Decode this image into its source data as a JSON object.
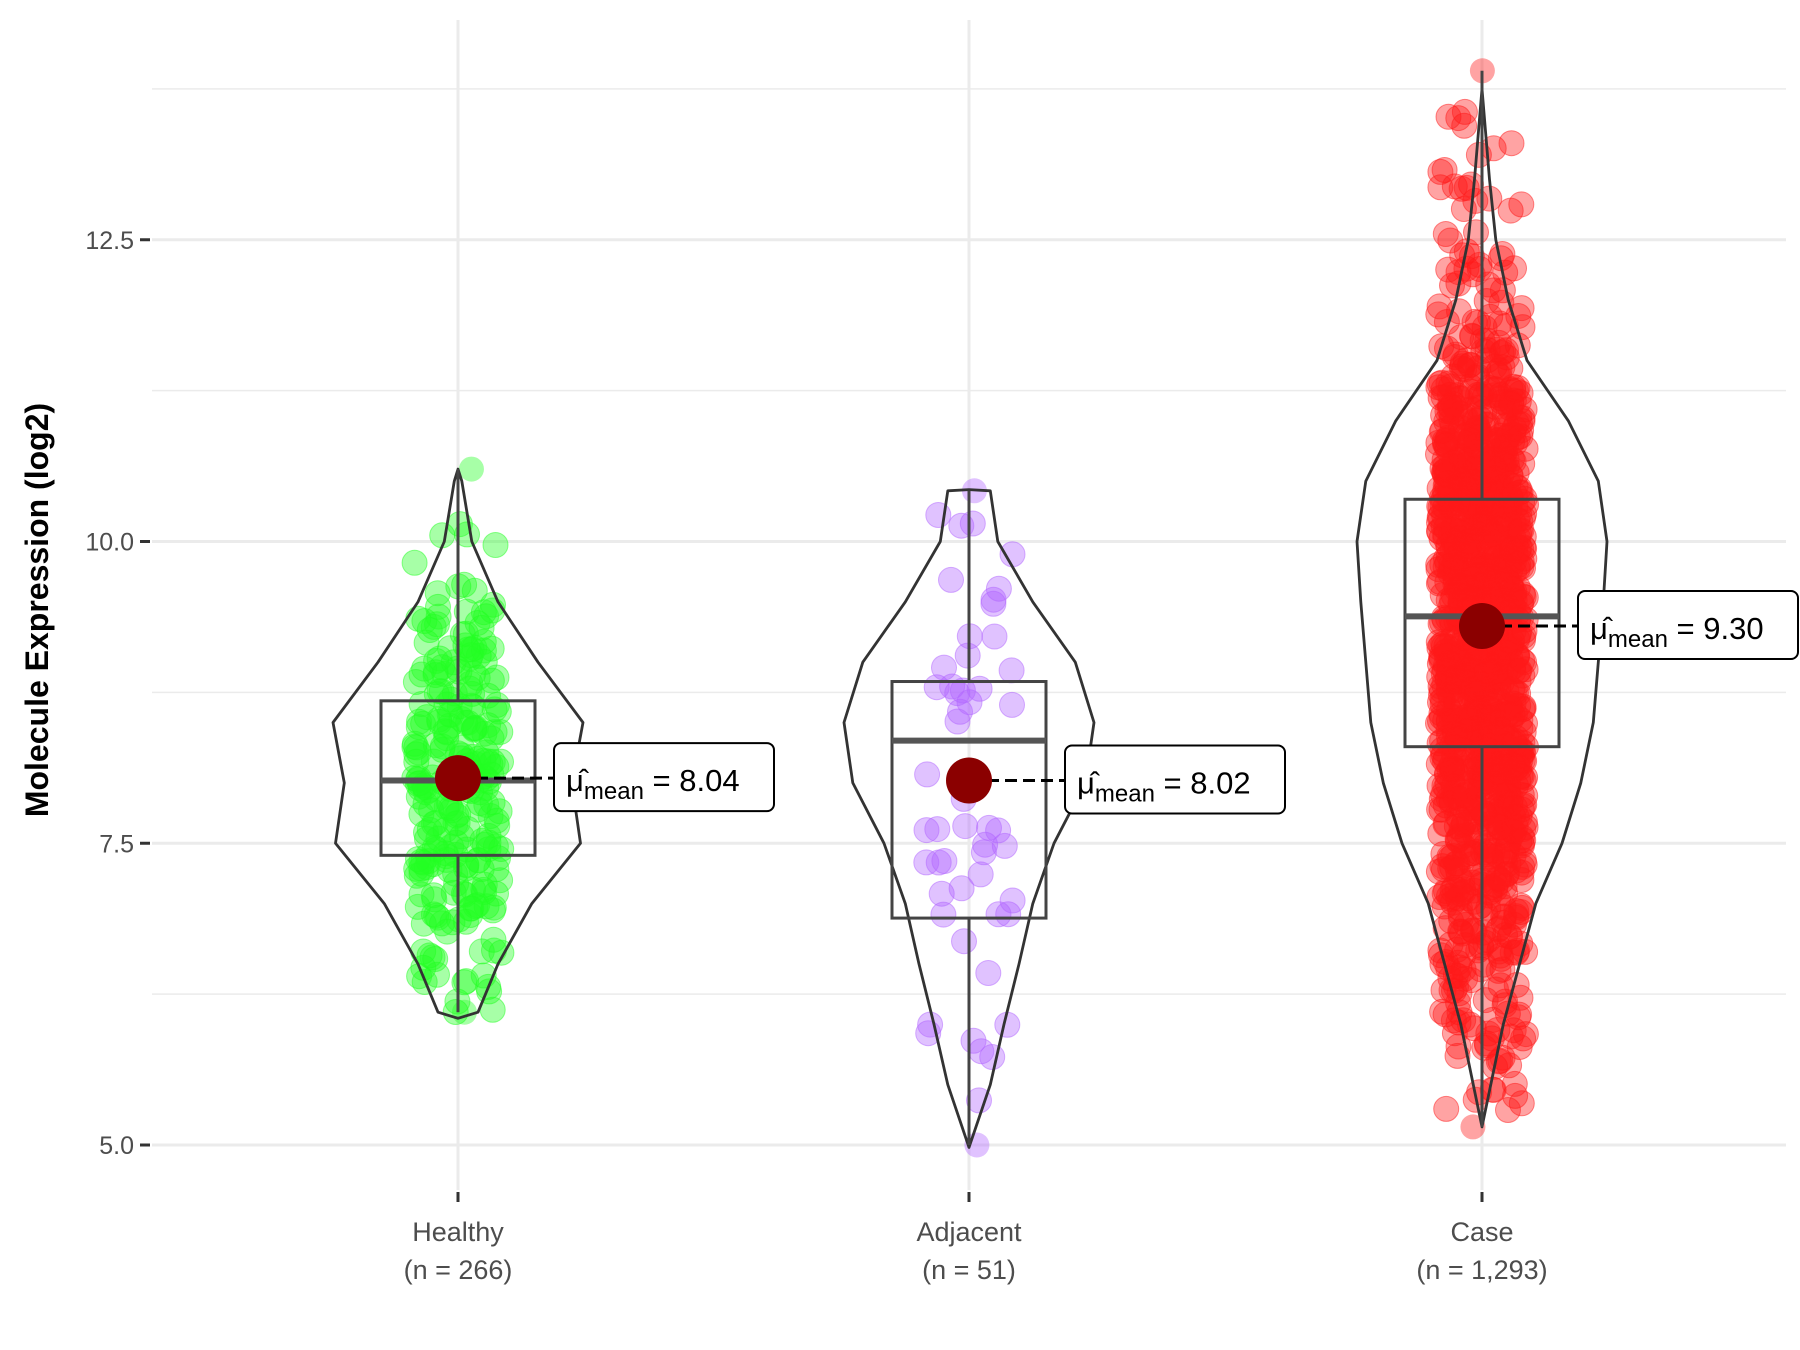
{
  "chart_data": {
    "type": "violin",
    "title": "",
    "xlabel": "",
    "ylabel": "Molecule Expression (log2)",
    "ylim": [
      4.73,
      14.3
    ],
    "yticks": [
      5.0,
      7.5,
      10.0,
      12.5
    ],
    "ytick_labels": [
      "5.0",
      "7.5",
      "10.0",
      "12.5"
    ],
    "grid": true,
    "mean_prefix": "μ̂",
    "mean_subscript": "mean",
    "groups": [
      {
        "name": "Healthy",
        "n_label": "(n = 266)",
        "n": 266,
        "color": "#22FF22",
        "mean": 8.04,
        "mean_label": "8.04",
        "min": 6.1,
        "q1": 7.4,
        "median": 8.02,
        "q3": 8.68,
        "max": 10.6,
        "density": [
          [
            6.05,
            0
          ],
          [
            6.1,
            0.16
          ],
          [
            6.5,
            0.32
          ],
          [
            7.0,
            0.59
          ],
          [
            7.5,
            0.98
          ],
          [
            8.0,
            0.91
          ],
          [
            8.5,
            1.0
          ],
          [
            9.0,
            0.64
          ],
          [
            9.5,
            0.32
          ],
          [
            10.0,
            0.11
          ],
          [
            10.5,
            0.03
          ],
          [
            10.6,
            0
          ]
        ]
      },
      {
        "name": "Adjacent",
        "n_label": "(n = 51)",
        "n": 51,
        "color": "#B266FF",
        "mean": 8.02,
        "mean_label": "8.02",
        "min": 5.0,
        "q1": 6.88,
        "median": 8.35,
        "q3": 8.84,
        "max": 10.42,
        "density": [
          [
            4.98,
            0
          ],
          [
            5.5,
            0.17
          ],
          [
            6.0,
            0.28
          ],
          [
            6.5,
            0.4
          ],
          [
            7.0,
            0.51
          ],
          [
            7.5,
            0.68
          ],
          [
            8.0,
            0.93
          ],
          [
            8.5,
            1.0
          ],
          [
            9.0,
            0.85
          ],
          [
            9.5,
            0.51
          ],
          [
            10.0,
            0.23
          ],
          [
            10.42,
            0.17
          ],
          [
            10.43,
            0
          ]
        ]
      },
      {
        "name": "Case",
        "n_label": "(n = 1,293)",
        "n": 1293,
        "color": "#FF1A1A",
        "mean": 9.3,
        "mean_label": "9.30",
        "min": 5.15,
        "q1": 8.3,
        "median": 9.38,
        "q3": 10.35,
        "max": 13.9,
        "density": [
          [
            5.15,
            0
          ],
          [
            6.0,
            0.17
          ],
          [
            7.0,
            0.43
          ],
          [
            7.5,
            0.64
          ],
          [
            8.0,
            0.79
          ],
          [
            8.5,
            0.89
          ],
          [
            9.0,
            0.93
          ],
          [
            9.5,
            0.97
          ],
          [
            10.0,
            1.0
          ],
          [
            10.5,
            0.93
          ],
          [
            11.0,
            0.69
          ],
          [
            11.5,
            0.36
          ],
          [
            12.0,
            0.21
          ],
          [
            12.5,
            0.11
          ],
          [
            13.0,
            0.06
          ],
          [
            13.75,
            0
          ]
        ]
      }
    ]
  }
}
